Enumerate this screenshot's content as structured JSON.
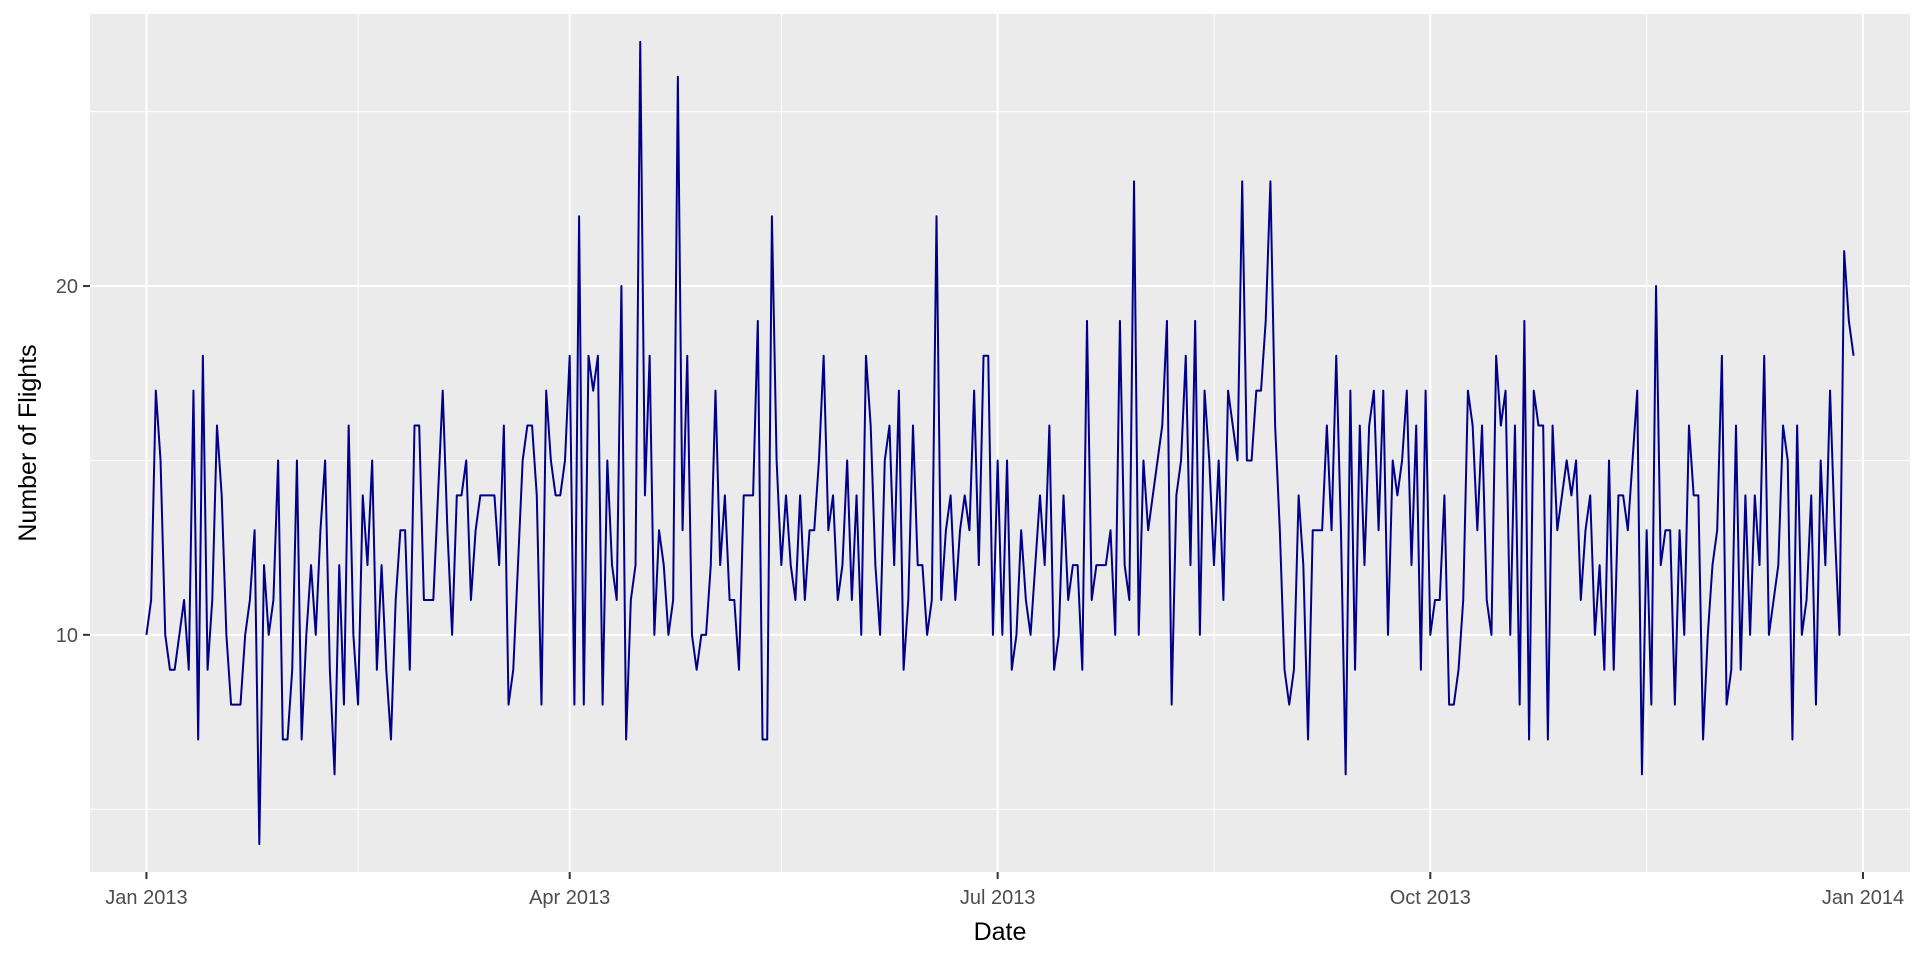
{
  "chart_data": {
    "type": "line",
    "title": "",
    "xlabel": "Date",
    "ylabel": "Number of Flights",
    "x_type": "date",
    "x_start": "2013-01-01",
    "x_end": "2013-12-31",
    "xlim": [
      "2012-12-20",
      "2014-01-11"
    ],
    "ylim": [
      3.2,
      27.8
    ],
    "x_ticks": [
      {
        "label": "Jan 2013",
        "date": "2013-01-01"
      },
      {
        "label": "Apr 2013",
        "date": "2013-04-01"
      },
      {
        "label": "Jul 2013",
        "date": "2013-07-01"
      },
      {
        "label": "Oct 2013",
        "date": "2013-10-01"
      },
      {
        "label": "Jan 2014",
        "date": "2014-01-01"
      }
    ],
    "x_minor_ticks": [
      "2013-02-15",
      "2013-05-16",
      "2013-08-16",
      "2013-11-16"
    ],
    "y_ticks": [
      {
        "label": "10",
        "value": 10
      },
      {
        "label": "20",
        "value": 20
      }
    ],
    "y_minor_ticks": [
      5,
      15,
      25
    ],
    "grid": true,
    "series": [
      {
        "color": "#00008B",
        "values": [
          10,
          11,
          17,
          15,
          10,
          9,
          9,
          10,
          11,
          9,
          17,
          7,
          18,
          9,
          11,
          16,
          14,
          10,
          8,
          8,
          8,
          10,
          11,
          13,
          4,
          12,
          10,
          11,
          15,
          7,
          7,
          9,
          15,
          7,
          10,
          12,
          10,
          13,
          15,
          9,
          6,
          12,
          8,
          16,
          10,
          8,
          14,
          12,
          15,
          9,
          12,
          9,
          7,
          11,
          13,
          13,
          9,
          16,
          16,
          11,
          11,
          11,
          14,
          17,
          13,
          10,
          14,
          14,
          15,
          11,
          13,
          14,
          14,
          14,
          14,
          12,
          16,
          8,
          9,
          12,
          15,
          16,
          16,
          14,
          8,
          17,
          15,
          14,
          14,
          15,
          18,
          8,
          22,
          8,
          18,
          17,
          18,
          8,
          15,
          12,
          11,
          20,
          7,
          11,
          12,
          27,
          14,
          18,
          10,
          13,
          12,
          10,
          11,
          26,
          13,
          18,
          10,
          9,
          10,
          10,
          12,
          17,
          12,
          14,
          11,
          11,
          9,
          14,
          14,
          14,
          19,
          7,
          7,
          22,
          15,
          12,
          14,
          12,
          11,
          14,
          11,
          13,
          13,
          15,
          18,
          13,
          14,
          11,
          12,
          15,
          11,
          14,
          10,
          18,
          16,
          12,
          10,
          15,
          16,
          12,
          17,
          9,
          11,
          16,
          12,
          12,
          10,
          11,
          22,
          11,
          13,
          14,
          11,
          13,
          14,
          13,
          17,
          12,
          18,
          18,
          10,
          15,
          10,
          15,
          9,
          10,
          13,
          11,
          10,
          12,
          14,
          12,
          16,
          9,
          10,
          14,
          11,
          12,
          12,
          9,
          19,
          11,
          12,
          12,
          12,
          13,
          10,
          19,
          12,
          11,
          23,
          10,
          15,
          13,
          14,
          15,
          16,
          19,
          8,
          14,
          15,
          18,
          12,
          19,
          10,
          17,
          15,
          12,
          15,
          11,
          17,
          16,
          15,
          23,
          15,
          15,
          17,
          17,
          19,
          23,
          16,
          13,
          9,
          8,
          9,
          14,
          12,
          7,
          13,
          13,
          13,
          16,
          13,
          18,
          13,
          6,
          17,
          9,
          16,
          12,
          16,
          17,
          13,
          17,
          10,
          15,
          14,
          15,
          17,
          12,
          16,
          9,
          17,
          10,
          11,
          11,
          14,
          8,
          8,
          9,
          11,
          17,
          16,
          13,
          16,
          11,
          10,
          18,
          16,
          17,
          10,
          16,
          8,
          19,
          7,
          17,
          16,
          16,
          7,
          16,
          13,
          14,
          15,
          14,
          15,
          11,
          13,
          14,
          10,
          12,
          9,
          15,
          9,
          14,
          14,
          13,
          15,
          17,
          6,
          13,
          8,
          20,
          12,
          13,
          13,
          8,
          13,
          10,
          16,
          14,
          14,
          7,
          10,
          12,
          13,
          18,
          8,
          9,
          16,
          9,
          14,
          10,
          14,
          12,
          18,
          10,
          11,
          12,
          16,
          15,
          7,
          16,
          10,
          11,
          14,
          8,
          15,
          12,
          17,
          13,
          10,
          21,
          19,
          18
        ]
      }
    ]
  }
}
